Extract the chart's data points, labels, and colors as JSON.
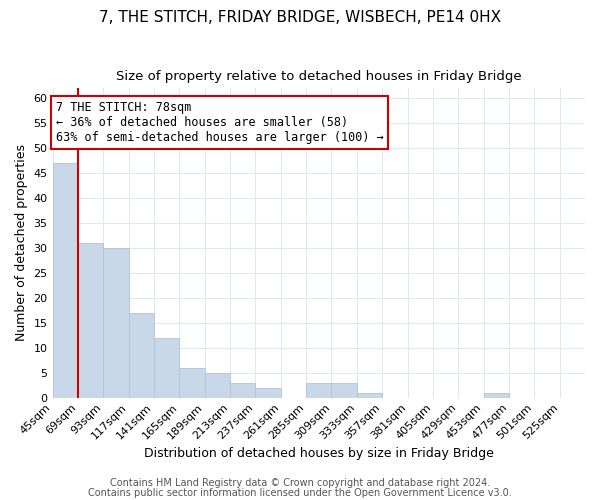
{
  "title": "7, THE STITCH, FRIDAY BRIDGE, WISBECH, PE14 0HX",
  "subtitle": "Size of property relative to detached houses in Friday Bridge",
  "xlabel": "Distribution of detached houses by size in Friday Bridge",
  "ylabel": "Number of detached properties",
  "bar_color": "#c8d8e8",
  "bar_edge_color": "#b0c4d8",
  "background_color": "#ffffff",
  "grid_color": "#dde8f0",
  "bins": [
    "45sqm",
    "69sqm",
    "93sqm",
    "117sqm",
    "141sqm",
    "165sqm",
    "189sqm",
    "213sqm",
    "237sqm",
    "261sqm",
    "285sqm",
    "309sqm",
    "333sqm",
    "357sqm",
    "381sqm",
    "405sqm",
    "429sqm",
    "453sqm",
    "477sqm",
    "501sqm",
    "525sqm"
  ],
  "values": [
    47,
    31,
    30,
    17,
    12,
    6,
    5,
    3,
    2,
    0,
    3,
    3,
    1,
    0,
    0,
    0,
    0,
    1,
    0,
    0,
    0
  ],
  "ylim": [
    0,
    62
  ],
  "yticks": [
    0,
    5,
    10,
    15,
    20,
    25,
    30,
    35,
    40,
    45,
    50,
    55,
    60
  ],
  "property_line_color": "#cc0000",
  "annotation_line1": "7 THE STITCH: 78sqm",
  "annotation_line2": "← 36% of detached houses are smaller (58)",
  "annotation_line3": "63% of semi-detached houses are larger (100) →",
  "annotation_box_color": "#ffffff",
  "annotation_border_color": "#cc0000",
  "footer_line1": "Contains HM Land Registry data © Crown copyright and database right 2024.",
  "footer_line2": "Contains public sector information licensed under the Open Government Licence v3.0.",
  "title_fontsize": 11,
  "subtitle_fontsize": 9.5,
  "xlabel_fontsize": 9,
  "ylabel_fontsize": 9,
  "tick_fontsize": 8,
  "annotation_fontsize": 8.5,
  "footer_fontsize": 7
}
